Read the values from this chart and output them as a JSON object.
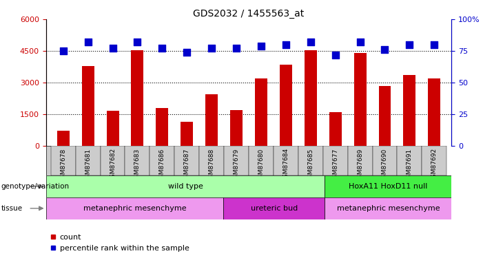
{
  "title": "GDS2032 / 1455563_at",
  "samples": [
    "GSM87678",
    "GSM87681",
    "GSM87682",
    "GSM87683",
    "GSM87686",
    "GSM87687",
    "GSM87688",
    "GSM87679",
    "GSM87680",
    "GSM87684",
    "GSM87685",
    "GSM87677",
    "GSM87689",
    "GSM87690",
    "GSM87691",
    "GSM87692"
  ],
  "counts": [
    700,
    3800,
    1650,
    4550,
    1780,
    1150,
    2450,
    1700,
    3200,
    3850,
    4550,
    1600,
    4400,
    2850,
    3350,
    3200
  ],
  "percentiles": [
    75,
    82,
    77,
    82,
    77,
    74,
    77,
    77,
    79,
    80,
    82,
    72,
    82,
    76,
    80,
    80
  ],
  "left_ylim": [
    0,
    6000
  ],
  "right_ylim": [
    0,
    100
  ],
  "left_yticks": [
    0,
    1500,
    3000,
    4500,
    6000
  ],
  "right_yticks": [
    0,
    25,
    50,
    75,
    100
  ],
  "bar_color": "#cc0000",
  "dot_color": "#0000cc",
  "genotype_groups": [
    {
      "label": "wild type",
      "start": 0,
      "end": 11,
      "color": "#aaffaa"
    },
    {
      "label": "HoxA11 HoxD11 null",
      "start": 11,
      "end": 16,
      "color": "#44ee44"
    }
  ],
  "tissue_groups": [
    {
      "label": "metanephric mesenchyme",
      "start": 0,
      "end": 7,
      "color": "#ee99ee"
    },
    {
      "label": "ureteric bud",
      "start": 7,
      "end": 11,
      "color": "#cc33cc"
    },
    {
      "label": "metanephric mesenchyme",
      "start": 11,
      "end": 16,
      "color": "#ee99ee"
    }
  ],
  "legend_count_label": "count",
  "legend_pct_label": "percentile rank within the sample",
  "genotype_label": "genotype/variation",
  "tissue_label": "tissue",
  "bar_width": 0.5,
  "dot_size": 45,
  "tick_bg_color": "#cccccc"
}
